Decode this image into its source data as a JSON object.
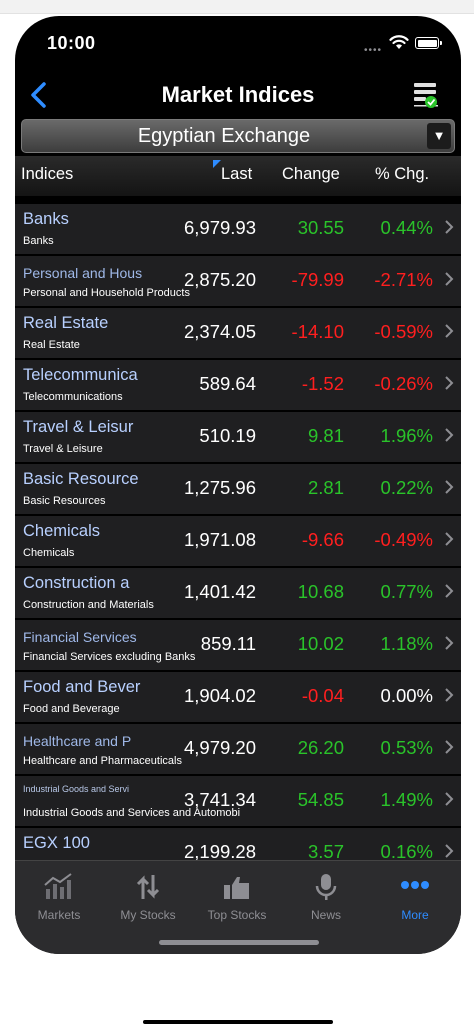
{
  "status": {
    "time": "10:00"
  },
  "nav": {
    "title": "Market Indices"
  },
  "exchange": {
    "label": "Egyptian Exchange",
    "arrow": "▼"
  },
  "columns": {
    "indices": "Indices",
    "last": "Last",
    "change": "Change",
    "pct": "% Chg."
  },
  "rows": [
    {
      "name": "Banks",
      "sub": "Banks",
      "last": "6,979.93",
      "change": "30.55",
      "pct": "0.44%",
      "change_color": "green",
      "pct_color": "green"
    },
    {
      "name": "Personal and Hous",
      "sub": "Personal and Household Products",
      "last": "2,875.20",
      "change": "-79.99",
      "pct": "-2.71%",
      "change_color": "red",
      "pct_color": "red"
    },
    {
      "name": "Real Estate",
      "sub": "Real Estate",
      "last": "2,374.05",
      "change": "-14.10",
      "pct": "-0.59%",
      "change_color": "red",
      "pct_color": "red"
    },
    {
      "name": "Telecommunica",
      "sub": "Telecommunications",
      "last": "589.64",
      "change": "-1.52",
      "pct": "-0.26%",
      "change_color": "red",
      "pct_color": "red"
    },
    {
      "name": "Travel & Leisur",
      "sub": "Travel & Leisure",
      "last": "510.19",
      "change": "9.81",
      "pct": "1.96%",
      "change_color": "green",
      "pct_color": "green"
    },
    {
      "name": "Basic Resource",
      "sub": "Basic Resources",
      "last": "1,275.96",
      "change": "2.81",
      "pct": "0.22%",
      "change_color": "green",
      "pct_color": "green"
    },
    {
      "name": "Chemicals",
      "sub": "Chemicals",
      "last": "1,971.08",
      "change": "-9.66",
      "pct": "-0.49%",
      "change_color": "red",
      "pct_color": "red"
    },
    {
      "name": "Construction a",
      "sub": "Construction and Materials",
      "last": "1,401.42",
      "change": "10.68",
      "pct": "0.77%",
      "change_color": "green",
      "pct_color": "green"
    },
    {
      "name": "Financial Services",
      "sub": "Financial Services excluding Banks",
      "last": "859.11",
      "change": "10.02",
      "pct": "1.18%",
      "change_color": "green",
      "pct_color": "green"
    },
    {
      "name": "Food and Bever",
      "sub": "Food and Beverage",
      "last": "1,904.02",
      "change": "-0.04",
      "pct": "0.00%",
      "change_color": "red",
      "pct_color": "white"
    },
    {
      "name": "Healthcare and P",
      "sub": "Healthcare and Pharmaceuticals",
      "last": "4,979.20",
      "change": "26.20",
      "pct": "0.53%",
      "change_color": "green",
      "pct_color": "green"
    },
    {
      "name": "Industrial Goods and Servi",
      "sub": "Industrial Goods and Services and Automobi",
      "last": "3,741.34",
      "change": "54.85",
      "pct": "1.49%",
      "change_color": "green",
      "pct_color": "green"
    },
    {
      "name": "EGX 100",
      "sub": "",
      "last": "2,199.28",
      "change": "3.57",
      "pct": "0.16%",
      "change_color": "green",
      "pct_color": "green"
    }
  ],
  "tabs": [
    {
      "label": "Markets",
      "icon": "markets-chart-icon"
    },
    {
      "label": "My Stocks",
      "icon": "up-down-arrows-icon"
    },
    {
      "label": "Top Stocks",
      "icon": "thumbs-up-icon"
    },
    {
      "label": "News",
      "icon": "microphone-icon"
    },
    {
      "label": "More",
      "icon": "more-dots-icon",
      "active": true
    }
  ],
  "colors": {
    "green": "#2ac32a",
    "red": "#ff1f1f",
    "accent": "#2e8cff",
    "row_bg": "#1f1f21"
  }
}
